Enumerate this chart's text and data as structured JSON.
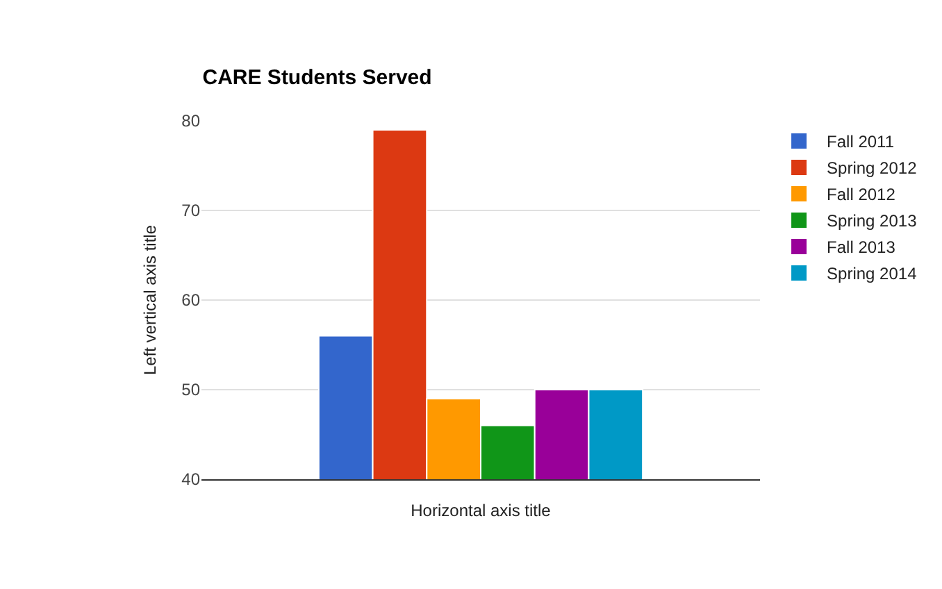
{
  "chart_data": {
    "type": "bar",
    "title": "CARE Students Served",
    "xlabel": "Horizontal axis title",
    "ylabel": "Left vertical axis title",
    "categories": [
      null
    ],
    "series": [
      {
        "name": "Fall 2011",
        "color": "#3366cc",
        "values": [
          56
        ]
      },
      {
        "name": "Spring 2012",
        "color": "#dc3912",
        "values": [
          79
        ]
      },
      {
        "name": "Fall 2012",
        "color": "#ff9900",
        "values": [
          49
        ]
      },
      {
        "name": "Spring 2013",
        "color": "#109618",
        "values": [
          46
        ]
      },
      {
        "name": "Fall 2013",
        "color": "#990099",
        "values": [
          50
        ]
      },
      {
        "name": "Spring 2014",
        "color": "#0099c6",
        "values": [
          50
        ]
      }
    ],
    "ylim": [
      40,
      80
    ],
    "yticks": [
      40,
      50,
      60,
      70,
      80
    ],
    "grid": "y",
    "legend": "right"
  }
}
